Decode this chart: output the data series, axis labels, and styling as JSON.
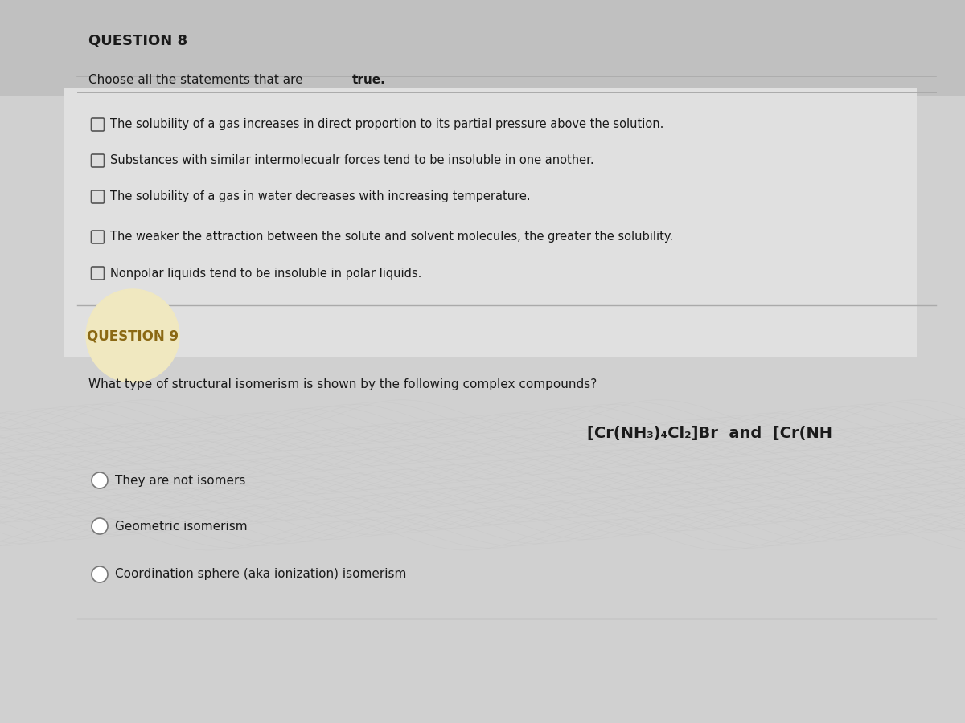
{
  "bg_color": "#d0d0d0",
  "bg_top_color": "#c0c0c0",
  "text_color": "#1a1a1a",
  "q8_title": "QUESTION 8",
  "q8_instruction": "Choose all the statements that are ",
  "q8_instruction_bold": "true.",
  "q8_options": [
    "The solubility of a gas increases in direct proportion to its partial pressure above the solution.",
    "Substances with similar intermolecualr forces tend to be insoluble in one another.",
    "The solubility of a gas in water decreases with increasing temperature.",
    "The weaker the attraction between the solute and solvent molecules, the greater the solubility.",
    "Nonpolar liquids tend to be insoluble in polar liquids."
  ],
  "q9_title": "QUESTION 9",
  "q9_question": "What type of structural isomerism is shown by the following complex compounds?",
  "q9_formula": "[Cr(NH₃)₄Cl₂]Br  and  [Cr(NH",
  "q9_options": [
    "They are not isomers",
    "Geometric isomerism",
    "Coordination sphere (aka ionization) isomerism"
  ],
  "q9_title_color": "#8B6914",
  "q9_bubble_color": "#f0e8c0",
  "divider_color": "#aaaaaa"
}
